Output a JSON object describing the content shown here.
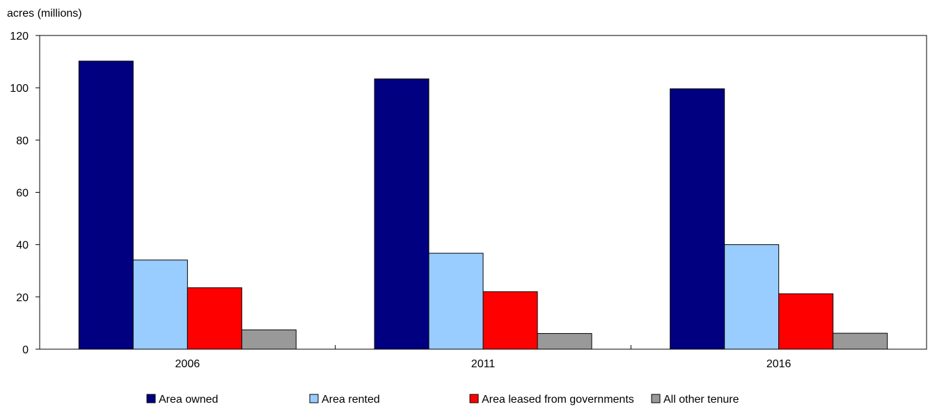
{
  "chart_data": {
    "type": "bar",
    "title": "",
    "ylabel": "acres (millions)",
    "xlabel": "",
    "ylim": [
      0,
      120
    ],
    "yticks": [
      0,
      20,
      40,
      60,
      80,
      100,
      120
    ],
    "grid": false,
    "legend_position": "bottom",
    "categories": [
      "2006",
      "2011",
      "2016"
    ],
    "series": [
      {
        "name": "Area owned",
        "color": "#000080",
        "values": [
          110.2,
          103.4,
          99.6
        ]
      },
      {
        "name": "Area rented",
        "color": "#99ccff",
        "values": [
          34.1,
          36.7,
          40.0
        ]
      },
      {
        "name": "Area leased from governments",
        "color": "#ff0000",
        "values": [
          23.5,
          22.0,
          21.2
        ]
      },
      {
        "name": "All other tenure",
        "color": "#999999",
        "values": [
          7.4,
          6.0,
          6.1
        ]
      }
    ]
  }
}
